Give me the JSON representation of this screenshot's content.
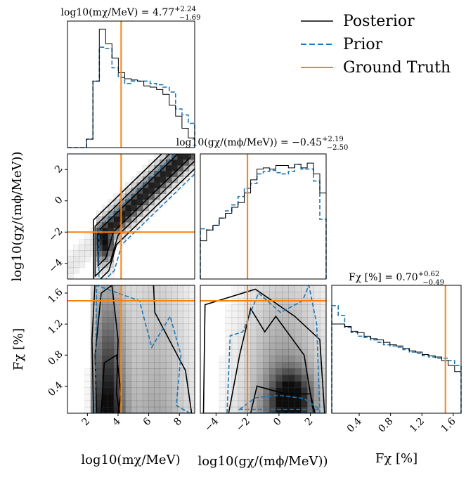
{
  "chart_data": {
    "type": "corner",
    "colors": {
      "posterior": "#000000",
      "prior": "#1f77b4",
      "ground_truth": "#ff7f0e",
      "density": "#000000"
    },
    "legend": {
      "placement": "top-right",
      "entries": [
        {
          "key": "posterior",
          "label": "Posterior",
          "style": "solid"
        },
        {
          "key": "prior",
          "label": "Prior",
          "style": "dashed"
        },
        {
          "key": "ground_truth",
          "label": "Ground Truth",
          "style": "solid"
        }
      ]
    },
    "parameters": [
      {
        "key": "logm",
        "label": "log10(mχ/MeV)",
        "range": [
          0.7,
          9.0
        ],
        "ticks": [
          2,
          4,
          6,
          8
        ],
        "ground_truth": 4.2,
        "title": {
          "prefix": "log10(mχ/MeV) = 4.77",
          "plus": "+2.24",
          "minus": "−1.69"
        },
        "hist_edges": [
          0.7,
          1.115,
          1.53,
          1.945,
          2.36,
          2.775,
          3.19,
          3.605,
          4.02,
          4.435,
          4.85,
          5.265,
          5.68,
          6.095,
          6.51,
          6.925,
          7.34,
          7.755,
          8.17,
          8.585,
          9.0
        ],
        "posterior_hist": [
          0,
          0,
          0,
          0.07,
          0.55,
          0.98,
          0.86,
          0.74,
          0.62,
          0.57,
          0.56,
          0.55,
          0.51,
          0.5,
          0.48,
          0.44,
          0.35,
          0.26,
          0.16,
          0.08
        ],
        "prior_hist": [
          0,
          0,
          0,
          0.07,
          0.55,
          0.83,
          0.82,
          0.66,
          0.58,
          0.53,
          0.55,
          0.55,
          0.55,
          0.53,
          0.52,
          0.5,
          0.46,
          0.32,
          0.27,
          0.2
        ]
      },
      {
        "key": "logg",
        "label": "log10(gχ/(mϕ/MeV))",
        "range": [
          -5.0,
          3.0
        ],
        "ticks": [
          -4,
          -2,
          0,
          2
        ],
        "ground_truth": -2.0,
        "title": {
          "prefix": "log10(gχ/(mϕ/MeV)) = −0.45",
          "plus": "+2.19",
          "minus": "−2.50"
        },
        "hist_edges": [
          -5.0,
          -4.6,
          -4.2,
          -3.8,
          -3.4,
          -3.0,
          -2.6,
          -2.2,
          -1.8,
          -1.4,
          -1.0,
          -0.6,
          -0.2,
          0.2,
          0.6,
          1.0,
          1.4,
          1.8,
          2.2,
          2.6,
          3.0
        ],
        "posterior_hist": [
          0.32,
          0.41,
          0.45,
          0.51,
          0.55,
          0.6,
          0.64,
          0.72,
          0.83,
          0.92,
          0.93,
          0.92,
          0.95,
          0.95,
          0.93,
          0.96,
          0.93,
          0.97,
          0.88,
          0.72
        ],
        "prior_hist": [
          0.42,
          0.41,
          0.45,
          0.51,
          0.57,
          0.62,
          0.69,
          0.76,
          0.8,
          0.88,
          0.9,
          0.91,
          0.89,
          0.88,
          0.9,
          0.96,
          0.92,
          0.92,
          0.82,
          0.5
        ]
      },
      {
        "key": "fchi",
        "label": "Fχ [%]",
        "range": [
          0.05,
          1.7
        ],
        "ticks": [
          0.4,
          0.8,
          1.2,
          1.6
        ],
        "ground_truth": 1.5,
        "title": {
          "prefix": "Fχ [%] = 0.70",
          "plus": "+0.62",
          "minus": "−0.49"
        },
        "hist_edges": [
          0.05,
          0.1325,
          0.215,
          0.2975,
          0.38,
          0.4625,
          0.545,
          0.6275,
          0.71,
          0.7925,
          0.875,
          0.9575,
          1.04,
          1.1225,
          1.205,
          1.2875,
          1.37,
          1.4525,
          1.535,
          1.6175,
          1.7
        ],
        "posterior_hist": [
          0.73,
          0.73,
          0.71,
          0.67,
          0.66,
          0.63,
          0.61,
          0.6,
          0.58,
          0.56,
          0.55,
          0.53,
          0.51,
          0.5,
          0.48,
          0.47,
          0.46,
          0.43,
          0.39,
          0.34
        ],
        "prior_hist": [
          0.88,
          0.8,
          0.7,
          0.66,
          0.63,
          0.62,
          0.6,
          0.58,
          0.56,
          0.55,
          0.54,
          0.52,
          0.5,
          0.49,
          0.47,
          0.46,
          0.45,
          0.45,
          0.43,
          0.39
        ]
      }
    ]
  }
}
